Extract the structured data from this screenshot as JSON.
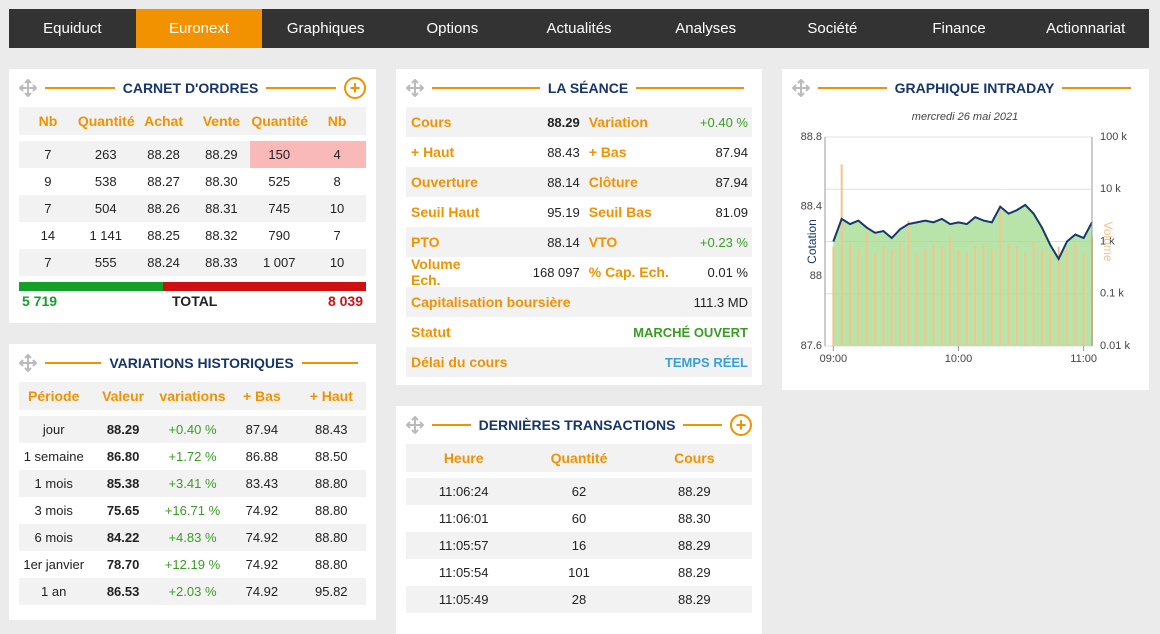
{
  "nav": {
    "items": [
      "Equiduct",
      "Euronext",
      "Graphiques",
      "Options",
      "Actualités",
      "Analyses",
      "Société",
      "Finance",
      "Actionnariat"
    ],
    "active": 1
  },
  "carnet": {
    "title": "CARNET D'ORDRES",
    "headers": [
      "Nb",
      "Quantité",
      "Achat",
      "Vente",
      "Quantité",
      "Nb"
    ],
    "rows": [
      [
        "7",
        "263",
        "88.28",
        "88.29",
        "150",
        "4"
      ],
      [
        "9",
        "538",
        "88.27",
        "88.30",
        "525",
        "8"
      ],
      [
        "7",
        "504",
        "88.26",
        "88.31",
        "745",
        "10"
      ],
      [
        "14",
        "1 141",
        "88.25",
        "88.32",
        "790",
        "7"
      ],
      [
        "7",
        "555",
        "88.24",
        "88.33",
        "1 007",
        "10"
      ]
    ],
    "totals": {
      "buy": "5 719",
      "label": "TOTAL",
      "sell": "8 039"
    }
  },
  "variations": {
    "title": "VARIATIONS HISTORIQUES",
    "headers": [
      "Période",
      "Valeur",
      "variations",
      "+ Bas",
      "+ Haut"
    ],
    "rows": [
      [
        "jour",
        "88.29",
        "+0.40 %",
        "87.94",
        "88.43"
      ],
      [
        "1 semaine",
        "86.80",
        "+1.72 %",
        "86.88",
        "88.50"
      ],
      [
        "1 mois",
        "85.38",
        "+3.41 %",
        "83.43",
        "88.80"
      ],
      [
        "3 mois",
        "75.65",
        "+16.71 %",
        "74.92",
        "88.80"
      ],
      [
        "6 mois",
        "84.22",
        "+4.83 %",
        "74.92",
        "88.80"
      ],
      [
        "1er janvier",
        "78.70",
        "+12.19 %",
        "74.92",
        "88.80"
      ],
      [
        "1 an",
        "86.53",
        "+2.03 %",
        "74.92",
        "95.82"
      ]
    ]
  },
  "seance": {
    "title": "LA SÉANCE",
    "rows": [
      [
        "Cours",
        "88.29",
        "Variation",
        "+0.40 %"
      ],
      [
        "+ Haut",
        "88.43",
        "+ Bas",
        "87.94"
      ],
      [
        "Ouverture",
        "88.14",
        "Clôture",
        "87.94"
      ],
      [
        "Seuil Haut",
        "95.19",
        "Seuil Bas",
        "81.09"
      ],
      [
        "PTO",
        "88.14",
        "VTO",
        "+0.23 %"
      ],
      [
        "Volume Ech.",
        "168 097",
        "% Cap. Ech.",
        "0.01 %"
      ]
    ],
    "full_rows": [
      [
        "Capitalisation boursière",
        "111.3 MD"
      ],
      [
        "Statut",
        "MARCHÉ OUVERT"
      ],
      [
        "Délai du cours",
        "TEMPS RÉEL"
      ]
    ]
  },
  "transactions": {
    "title": "DERNIÈRES TRANSACTIONS",
    "headers": [
      "Heure",
      "Quantité",
      "Cours"
    ],
    "rows": [
      [
        "11:06:24",
        "62",
        "88.29"
      ],
      [
        "11:06:01",
        "60",
        "88.30"
      ],
      [
        "11:05:57",
        "16",
        "88.29"
      ],
      [
        "11:05:54",
        "101",
        "88.29"
      ],
      [
        "11:05:49",
        "28",
        "88.29"
      ]
    ]
  },
  "intraday": {
    "type": "line",
    "title": "GRAPHIQUE INTRADAY",
    "subtitle": "mercredi 26 mai 2021",
    "ylabel": "Cotation",
    "y2label": "Volume",
    "x": [
      "09:00",
      "09:04",
      "09:08",
      "09:12",
      "09:16",
      "09:20",
      "09:24",
      "09:28",
      "09:32",
      "09:36",
      "09:40",
      "09:44",
      "09:48",
      "09:52",
      "09:56",
      "10:00",
      "10:04",
      "10:08",
      "10:12",
      "10:16",
      "10:20",
      "10:24",
      "10:28",
      "10:32",
      "10:36",
      "10:40",
      "10:44",
      "10:48",
      "10:52",
      "10:56",
      "11:00",
      "11:04"
    ],
    "xlim": [
      "08:56",
      "11:04"
    ],
    "xticks": [
      "09:00",
      "10:00",
      "11:00"
    ],
    "ylim": [
      87.6,
      88.8
    ],
    "yticks": [
      88.8,
      88.4,
      88,
      87.6
    ],
    "y2lim": [
      10,
      100000
    ],
    "y2log": true,
    "y2ticks": [
      {
        "value": 100000,
        "label": "100 k"
      },
      {
        "value": 10000,
        "label": "10 k"
      },
      {
        "value": 1000,
        "label": "1 k"
      },
      {
        "value": 100,
        "label": "0.1 k"
      },
      {
        "value": 10,
        "label": "0.01 k"
      }
    ],
    "series": [
      {
        "name": "Cotation",
        "color": "#16386b",
        "fill": "#a6dd95",
        "values": [
          88.2,
          88.33,
          88.3,
          88.32,
          88.28,
          88.25,
          88.26,
          88.22,
          88.27,
          88.3,
          88.31,
          88.32,
          88.31,
          88.33,
          88.3,
          88.31,
          88.3,
          88.34,
          88.32,
          88.31,
          88.4,
          88.36,
          88.38,
          88.41,
          88.36,
          88.28,
          88.18,
          88.1,
          88.2,
          88.24,
          88.22,
          88.31
        ]
      },
      {
        "name": "Volume",
        "axis": "y2",
        "color": "#f5c48a",
        "values": [
          800,
          30000,
          900,
          700,
          1500,
          600,
          800,
          700,
          900,
          2500,
          600,
          700,
          900,
          800,
          1200,
          700,
          600,
          800,
          900,
          700,
          4000,
          900,
          800,
          600,
          1000,
          700,
          600,
          800,
          700,
          900,
          600,
          1200
        ]
      }
    ]
  }
}
